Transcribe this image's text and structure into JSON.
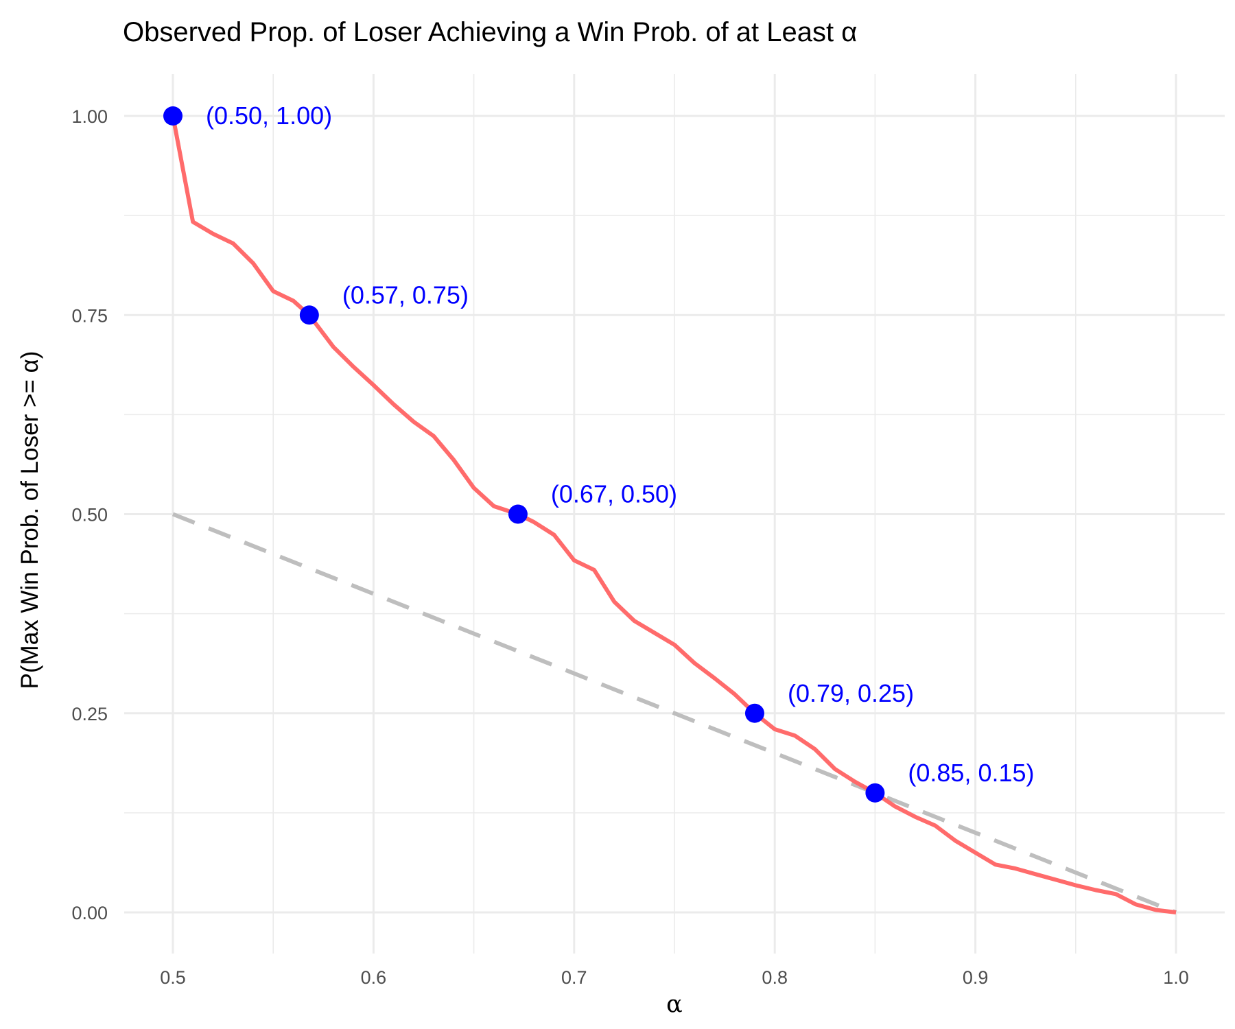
{
  "chart_data": {
    "type": "line",
    "title": "Observed Prop. of Loser Achieving a Win Prob. of at Least α",
    "xlabel": "α",
    "ylabel": "P(Max Win Prob. of Loser >= α)",
    "xlim": [
      0.5,
      1.0
    ],
    "ylim": [
      0.0,
      1.0
    ],
    "x_ticks": [
      "0.5",
      "0.6",
      "0.7",
      "0.8",
      "0.9",
      "1.0"
    ],
    "y_ticks": [
      "0.00",
      "0.25",
      "0.50",
      "0.75",
      "1.00"
    ],
    "grid": true,
    "colors": {
      "observed": "#ff6b6b",
      "reference": "#bebebe",
      "points": "#0000ff",
      "labels": "#0000ff",
      "grid": "#ebebeb"
    },
    "series": [
      {
        "style": "solid",
        "color": "#ff6b6b",
        "x": [
          0.5,
          0.51,
          0.52,
          0.53,
          0.54,
          0.55,
          0.56,
          0.568,
          0.58,
          0.59,
          0.6,
          0.61,
          0.62,
          0.63,
          0.64,
          0.65,
          0.66,
          0.672,
          0.68,
          0.69,
          0.7,
          0.71,
          0.72,
          0.73,
          0.74,
          0.75,
          0.76,
          0.77,
          0.78,
          0.79,
          0.8,
          0.81,
          0.82,
          0.83,
          0.84,
          0.85,
          0.86,
          0.87,
          0.88,
          0.89,
          0.9,
          0.91,
          0.92,
          0.93,
          0.94,
          0.95,
          0.96,
          0.97,
          0.98,
          0.99,
          1.0
        ],
        "y": [
          1.0,
          0.867,
          0.852,
          0.84,
          0.815,
          0.78,
          0.768,
          0.75,
          0.71,
          0.685,
          0.662,
          0.638,
          0.616,
          0.598,
          0.568,
          0.533,
          0.51,
          0.5,
          0.49,
          0.474,
          0.442,
          0.43,
          0.39,
          0.366,
          0.351,
          0.336,
          0.313,
          0.294,
          0.274,
          0.25,
          0.23,
          0.222,
          0.205,
          0.18,
          0.164,
          0.15,
          0.133,
          0.12,
          0.109,
          0.09,
          0.075,
          0.06,
          0.055,
          0.048,
          0.041,
          0.034,
          0.028,
          0.023,
          0.01,
          0.003,
          0.0
        ]
      },
      {
        "style": "dashed",
        "color": "#bebebe",
        "x": [
          0.5,
          1.0
        ],
        "y": [
          0.5,
          0.0
        ]
      }
    ],
    "points": [
      {
        "x": 0.5,
        "y": 1.0,
        "label": "(0.50, 1.00)"
      },
      {
        "x": 0.568,
        "y": 0.75,
        "label": "(0.57, 0.75)"
      },
      {
        "x": 0.672,
        "y": 0.5,
        "label": "(0.67, 0.50)"
      },
      {
        "x": 0.79,
        "y": 0.25,
        "label": "(0.79, 0.25)"
      },
      {
        "x": 0.85,
        "y": 0.15,
        "label": "(0.85, 0.15)"
      }
    ]
  }
}
